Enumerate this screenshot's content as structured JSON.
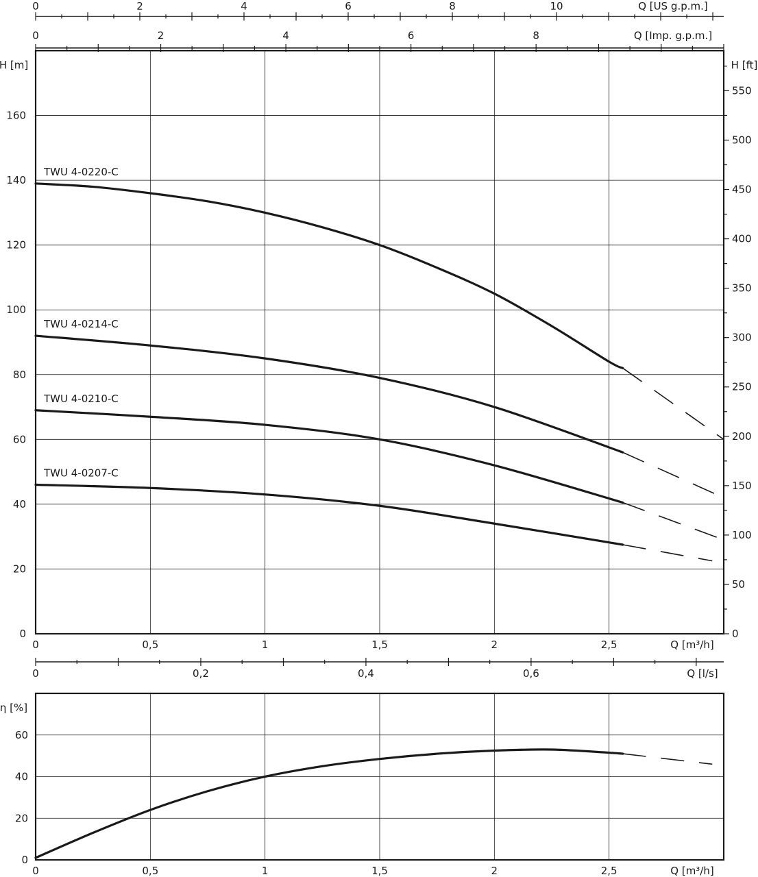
{
  "chart_data": [
    {
      "type": "line",
      "title": "",
      "xlabel": "Q [m³/h]",
      "ylabel": "H [m]",
      "xlim": [
        0,
        3.0
      ],
      "ylim": [
        0,
        180
      ],
      "x_ticks": [
        "0",
        "0,5",
        "1",
        "1,5",
        "2",
        "2,5"
      ],
      "y_ticks": [
        "0",
        "20",
        "40",
        "60",
        "80",
        "100",
        "120",
        "140",
        "160"
      ],
      "grid": true,
      "secondary_axes": {
        "top_us_gpm": {
          "label": "Q [US g.p.m.]",
          "ticks": [
            "0",
            "2",
            "4",
            "6",
            "8",
            "10"
          ],
          "max": 13.21
        },
        "top_imp_gpm": {
          "label": "Q [Imp. g.p.m.]",
          "ticks": [
            "0",
            "2",
            "4",
            "6",
            "8"
          ],
          "max": 11.0
        },
        "right_ft": {
          "label": "H [ft]",
          "ticks": [
            "0",
            "50",
            "100",
            "150",
            "200",
            "250",
            "300",
            "350",
            "400",
            "450",
            "500",
            "550"
          ],
          "max": 590.55
        },
        "bottom_ls": {
          "label": "Q [l/s]",
          "ticks": [
            "0",
            "0,2",
            "0,4",
            "0,6"
          ],
          "max": 0.8333
        }
      },
      "series": [
        {
          "name": "TWU 4-0220-C",
          "x": [
            0,
            0.25,
            0.5,
            0.75,
            1.0,
            1.25,
            1.5,
            1.75,
            2.0,
            2.25,
            2.5,
            2.56
          ],
          "y": [
            139,
            138,
            136,
            133.5,
            130,
            125.5,
            120,
            113,
            105,
            95,
            84,
            82
          ],
          "x_ext": [
            2.56,
            3.0
          ],
          "y_ext": [
            82,
            60
          ]
        },
        {
          "name": "TWU 4-0214-C",
          "x": [
            0,
            0.5,
            1.0,
            1.5,
            2.0,
            2.56
          ],
          "y": [
            92,
            89,
            85,
            79,
            70,
            56
          ],
          "x_ext": [
            2.56,
            3.0
          ],
          "y_ext": [
            56,
            42
          ]
        },
        {
          "name": "TWU 4-0210-C",
          "x": [
            0,
            0.5,
            1.0,
            1.5,
            2.0,
            2.56
          ],
          "y": [
            69,
            67,
            64.5,
            60,
            52,
            40.5
          ],
          "x_ext": [
            2.56,
            3.0
          ],
          "y_ext": [
            40.5,
            29
          ]
        },
        {
          "name": "TWU 4-0207-C",
          "x": [
            0,
            0.5,
            1.0,
            1.5,
            2.0,
            2.56
          ],
          "y": [
            46,
            45,
            43,
            39.5,
            34,
            27.5
          ],
          "x_ext": [
            2.56,
            2.95
          ],
          "y_ext": [
            27.5,
            22.5
          ]
        }
      ]
    },
    {
      "type": "line",
      "title": "",
      "xlabel": "Q [m³/h]",
      "ylabel": "η [%]",
      "xlim": [
        0,
        3.0
      ],
      "ylim": [
        0,
        80
      ],
      "x_ticks": [
        "0",
        "0,5",
        "1",
        "1,5",
        "2",
        "2,5"
      ],
      "y_ticks": [
        "0",
        "20",
        "40",
        "60"
      ],
      "grid": true,
      "series": [
        {
          "name": "",
          "x": [
            0,
            0.25,
            0.5,
            0.75,
            1.0,
            1.25,
            1.5,
            1.75,
            2.0,
            2.25,
            2.5,
            2.56
          ],
          "y": [
            1,
            13,
            24,
            33,
            40,
            45,
            48.5,
            51,
            52.5,
            53,
            51.5,
            51
          ],
          "x_ext": [
            2.56,
            2.95
          ],
          "y_ext": [
            51,
            46
          ]
        }
      ]
    }
  ]
}
